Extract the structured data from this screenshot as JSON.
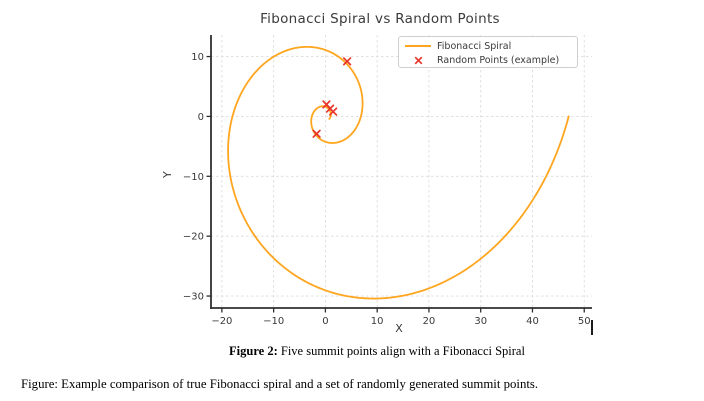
{
  "title": "Fibonacci Spiral vs Random Points",
  "axes": {
    "xlabel": "X",
    "ylabel": "Y"
  },
  "legend": {
    "items": [
      {
        "label": "Fibonacci Spiral",
        "marker": "line",
        "color": "#ffa51e"
      },
      {
        "label": "Random Points (example)",
        "marker": "x",
        "color": "#e8352a"
      }
    ]
  },
  "chart_data": {
    "type": "line",
    "title": "Fibonacci Spiral vs Random Points",
    "xlabel": "X",
    "ylabel": "Y",
    "xlim": [
      -22.1,
      51.5
    ],
    "ylim": [
      -32.0,
      13.6
    ],
    "xticks": [
      -20,
      -10,
      0,
      10,
      20,
      30,
      40,
      50
    ],
    "yticks": [
      10,
      0,
      -10,
      -20,
      -30
    ],
    "grid": true,
    "legend_position": "upper right",
    "series": [
      {
        "name": "Fibonacci Spiral",
        "type": "line",
        "color": "#ffa51e",
        "line_width": 1.8,
        "spiral": {
          "kind": "golden",
          "r_at_theta0": 47,
          "growth_factor_per_quarter_turn": 1.618034,
          "theta_start": -13.07,
          "theta_end": 0,
          "center": [
            0,
            0
          ]
        }
      },
      {
        "name": "Random Points (example)",
        "type": "scatter",
        "marker": "x",
        "color": "#e8352a",
        "points": [
          [
            4.2,
            9.2
          ],
          [
            0.2,
            2.0
          ],
          [
            0.9,
            1.3
          ],
          [
            1.5,
            0.8
          ],
          [
            -1.7,
            -2.9
          ]
        ]
      }
    ]
  },
  "captions": {
    "label": "Figure 2:",
    "text": " Five summit points align with a Fibonacci Spiral",
    "description": "Figure: Example comparison of true Fibonacci spiral and a set of randomly generated summit points."
  },
  "colors": {
    "spiral": "#ffa51e",
    "points": "#e8352a",
    "axis": "#2f2f2f",
    "grid": "#dcdcdc",
    "tick_text": "#3a3a3a"
  }
}
